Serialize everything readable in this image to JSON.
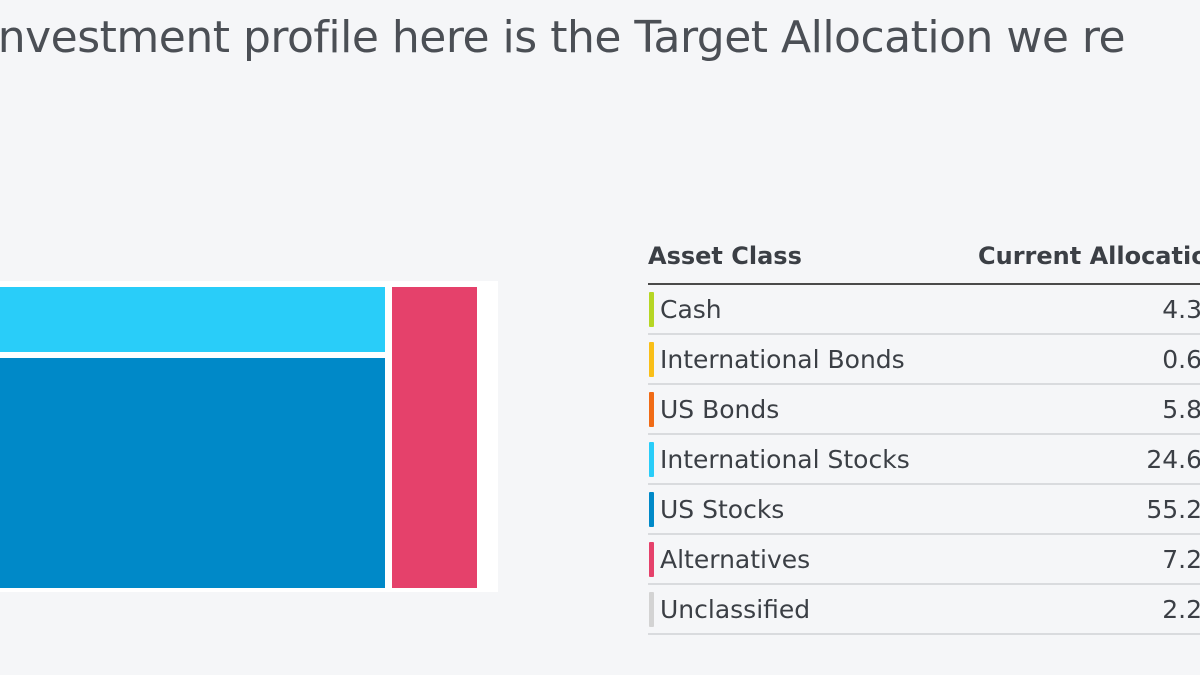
{
  "headline": "investment profile here is the Target Allocation we re",
  "treemap": {
    "tiles": [
      {
        "name": "International Stocks",
        "color": "#29cdf9"
      },
      {
        "name": "US Stocks",
        "color": "#0089c8"
      },
      {
        "name": "Alternatives",
        "color": "#e5416b"
      }
    ]
  },
  "table": {
    "col_asset_class": "Asset Class",
    "col_current_allocation": "Current Allocatio",
    "rows": [
      {
        "label": "Cash",
        "value": "4.3",
        "color": "#b6d624"
      },
      {
        "label": "International Bonds",
        "value": "0.6",
        "color": "#f9bf18"
      },
      {
        "label": "US Bonds",
        "value": "5.8",
        "color": "#f06b16"
      },
      {
        "label": "International Stocks",
        "value": "24.6",
        "color": "#29cdf9"
      },
      {
        "label": "US Stocks",
        "value": "55.2",
        "color": "#0089c8"
      },
      {
        "label": "Alternatives",
        "value": "7.2",
        "color": "#e5416b"
      },
      {
        "label": "Unclassified",
        "value": "2.2",
        "color": "#d3d3d3"
      }
    ]
  }
}
